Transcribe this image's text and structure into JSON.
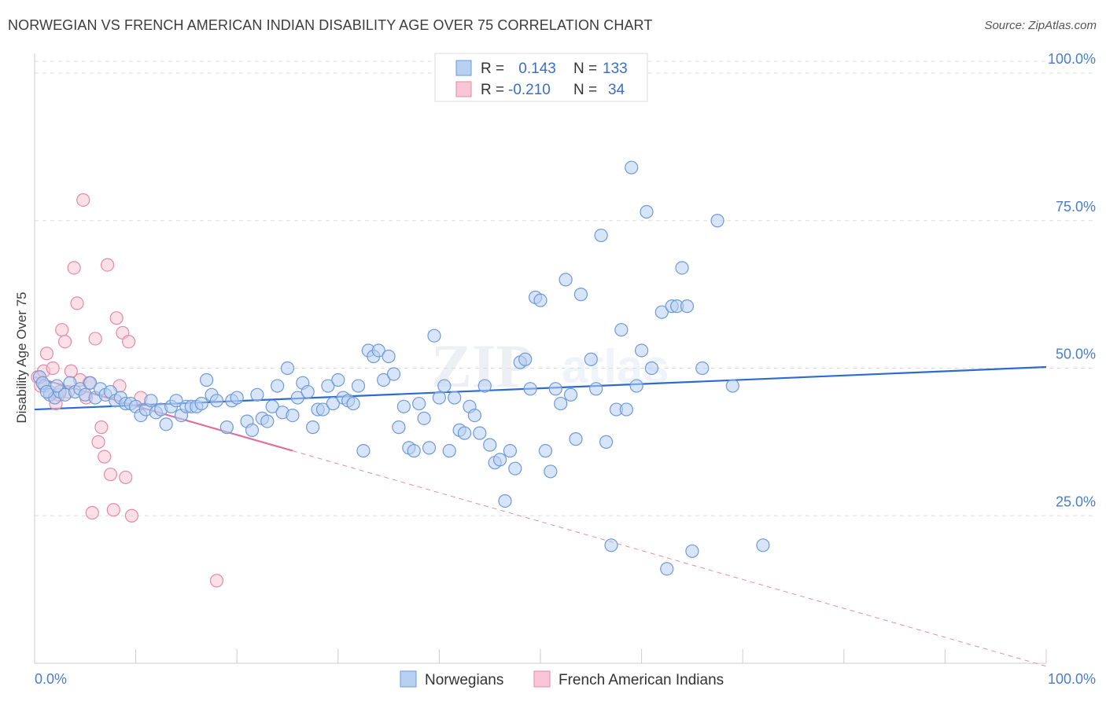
{
  "title": "NORWEGIAN VS FRENCH AMERICAN INDIAN DISABILITY AGE OVER 75 CORRELATION CHART",
  "source": "Source: ZipAtlas.com",
  "colors": {
    "blue_fill": "#b8d0f2",
    "blue_stroke": "#6e9ad8",
    "blue_line": "#2b6cd0",
    "pink_fill": "#f8c6d6",
    "pink_stroke": "#e48aa8",
    "pink_line": "#e0709a",
    "grid": "#dddddd",
    "tick_text": "#4a7ec8"
  },
  "legend": {
    "rows": [
      {
        "r_label": "R =",
        "r_value": " 0.143",
        "n_label": "N =",
        "n_value": "133"
      },
      {
        "r_label": "R =",
        "r_value": "-0.210",
        "n_label": "N =",
        "n_value": "34"
      }
    ]
  },
  "chart_data": {
    "type": "scatter",
    "title": "NORWEGIAN VS FRENCH AMERICAN INDIAN DISABILITY AGE OVER 75 CORRELATION CHART",
    "xlabel": "",
    "ylabel": "Disability Age Over 75",
    "xlim": [
      0,
      100
    ],
    "ylim": [
      0,
      102
    ],
    "x_tick_labels": [
      "0.0%",
      "100.0%"
    ],
    "y_ticks": [
      25,
      50,
      75,
      100
    ],
    "y_tick_labels": [
      "25.0%",
      "50.0%",
      "75.0%",
      "100.0%"
    ],
    "grid": true,
    "watermark": "ZIPatlas",
    "series": [
      {
        "name": "Norwegians",
        "color": "blue",
        "R": 0.143,
        "N": 133,
        "trend": {
          "x0": 0,
          "y0": 43.0,
          "x1": 100,
          "y1": 50.2,
          "dashed_from": null
        },
        "points": [
          [
            0.5,
            48.5
          ],
          [
            1.0,
            47.0
          ],
          [
            1.5,
            45.5
          ],
          [
            2.0,
            45.0
          ],
          [
            2.5,
            46.0
          ],
          [
            3.0,
            45.5
          ],
          [
            3.5,
            47.5
          ],
          [
            4.0,
            46.0
          ],
          [
            4.5,
            46.5
          ],
          [
            5.0,
            45.5
          ],
          [
            5.5,
            47.5
          ],
          [
            6.0,
            45.0
          ],
          [
            6.5,
            46.5
          ],
          [
            7.0,
            45.5
          ],
          [
            7.5,
            46.0
          ],
          [
            8.0,
            44.5
          ],
          [
            8.5,
            45.0
          ],
          [
            9.0,
            44.0
          ],
          [
            9.5,
            44.0
          ],
          [
            10.0,
            43.5
          ],
          [
            10.5,
            42.0
          ],
          [
            11.0,
            43.0
          ],
          [
            11.5,
            44.5
          ],
          [
            12.0,
            42.5
          ],
          [
            12.5,
            43.0
          ],
          [
            13.0,
            40.5
          ],
          [
            13.5,
            43.5
          ],
          [
            14.0,
            44.5
          ],
          [
            14.5,
            42.0
          ],
          [
            15.0,
            43.5
          ],
          [
            15.5,
            43.5
          ],
          [
            16.0,
            43.5
          ],
          [
            16.5,
            44.0
          ],
          [
            17.0,
            48.0
          ],
          [
            17.5,
            45.5
          ],
          [
            18.0,
            44.5
          ],
          [
            19.0,
            40.0
          ],
          [
            19.5,
            44.5
          ],
          [
            20.0,
            45.0
          ],
          [
            21.0,
            41.0
          ],
          [
            21.5,
            39.5
          ],
          [
            22.0,
            45.5
          ],
          [
            22.5,
            41.5
          ],
          [
            23.0,
            41.0
          ],
          [
            23.5,
            43.5
          ],
          [
            24.0,
            47.0
          ],
          [
            24.5,
            42.5
          ],
          [
            25.0,
            50.0
          ],
          [
            25.5,
            42.0
          ],
          [
            26.0,
            45.0
          ],
          [
            26.5,
            47.5
          ],
          [
            27.0,
            46.0
          ],
          [
            27.5,
            40.0
          ],
          [
            28.0,
            43.0
          ],
          [
            28.5,
            43.0
          ],
          [
            29.0,
            47.0
          ],
          [
            29.5,
            44.0
          ],
          [
            30.0,
            48.0
          ],
          [
            30.5,
            45.0
          ],
          [
            31.0,
            44.5
          ],
          [
            31.5,
            44.0
          ],
          [
            32.0,
            47.0
          ],
          [
            32.5,
            36.0
          ],
          [
            33.0,
            53.0
          ],
          [
            33.5,
            52.0
          ],
          [
            34.0,
            53.0
          ],
          [
            34.5,
            48.0
          ],
          [
            35.0,
            52.0
          ],
          [
            35.5,
            49.0
          ],
          [
            36.0,
            40.0
          ],
          [
            36.5,
            43.5
          ],
          [
            37.0,
            36.5
          ],
          [
            37.5,
            36.0
          ],
          [
            38.0,
            44.0
          ],
          [
            38.5,
            41.5
          ],
          [
            39.0,
            36.5
          ],
          [
            39.5,
            55.5
          ],
          [
            40.0,
            45.0
          ],
          [
            40.5,
            47.0
          ],
          [
            41.0,
            36.0
          ],
          [
            41.5,
            45.0
          ],
          [
            42.0,
            39.5
          ],
          [
            42.5,
            39.0
          ],
          [
            43.0,
            43.5
          ],
          [
            43.5,
            42.0
          ],
          [
            44.0,
            39.0
          ],
          [
            44.5,
            47.0
          ],
          [
            45.0,
            37.0
          ],
          [
            45.5,
            34.0
          ],
          [
            46.0,
            34.5
          ],
          [
            46.5,
            27.5
          ],
          [
            47.0,
            36.0
          ],
          [
            47.5,
            33.0
          ],
          [
            48.0,
            51.0
          ],
          [
            48.5,
            51.5
          ],
          [
            49.0,
            46.5
          ],
          [
            49.5,
            62.0
          ],
          [
            50.0,
            61.5
          ],
          [
            50.5,
            36.0
          ],
          [
            51.0,
            32.5
          ],
          [
            51.5,
            46.5
          ],
          [
            52.0,
            44.0
          ],
          [
            52.5,
            65.0
          ],
          [
            53.0,
            45.5
          ],
          [
            53.5,
            38.0
          ],
          [
            54.0,
            62.5
          ],
          [
            55.0,
            51.5
          ],
          [
            55.5,
            46.5
          ],
          [
            56.0,
            72.5
          ],
          [
            56.5,
            37.5
          ],
          [
            57.0,
            20.0
          ],
          [
            57.5,
            43.0
          ],
          [
            58.0,
            56.5
          ],
          [
            58.5,
            43.0
          ],
          [
            59.0,
            84.0
          ],
          [
            59.5,
            47.0
          ],
          [
            60.0,
            53.0
          ],
          [
            60.5,
            76.5
          ],
          [
            61.0,
            50.0
          ],
          [
            62.0,
            59.5
          ],
          [
            62.5,
            16.0
          ],
          [
            63.0,
            60.5
          ],
          [
            63.5,
            60.5
          ],
          [
            64.0,
            67.0
          ],
          [
            64.5,
            60.5
          ],
          [
            65.0,
            19.0
          ],
          [
            66.0,
            50.0
          ],
          [
            67.5,
            75.0
          ],
          [
            69.0,
            47.0
          ],
          [
            72.0,
            20.0
          ],
          [
            0.8,
            47.5
          ],
          [
            1.2,
            46.0
          ],
          [
            2.2,
            47.0
          ]
        ]
      },
      {
        "name": "French American Indians",
        "color": "pink",
        "R": -0.21,
        "N": 34,
        "trend": {
          "x0": 0,
          "y0": 48.5,
          "x1": 100,
          "y1": -0.5,
          "solid_until_x": 25.5
        },
        "points": [
          [
            0.3,
            48.5
          ],
          [
            0.6,
            47.0
          ],
          [
            0.9,
            49.5
          ],
          [
            1.2,
            52.5
          ],
          [
            1.5,
            46.0
          ],
          [
            1.8,
            50.0
          ],
          [
            2.1,
            44.0
          ],
          [
            2.4,
            45.5
          ],
          [
            2.7,
            56.5
          ],
          [
            3.0,
            54.5
          ],
          [
            3.3,
            46.0
          ],
          [
            3.6,
            49.5
          ],
          [
            3.9,
            67.0
          ],
          [
            4.2,
            61.0
          ],
          [
            4.5,
            48.0
          ],
          [
            4.8,
            78.5
          ],
          [
            5.1,
            45.0
          ],
          [
            5.4,
            47.5
          ],
          [
            5.7,
            25.5
          ],
          [
            6.0,
            55.0
          ],
          [
            6.3,
            37.5
          ],
          [
            6.6,
            40.0
          ],
          [
            6.9,
            35.0
          ],
          [
            7.2,
            67.5
          ],
          [
            7.5,
            32.0
          ],
          [
            7.8,
            26.0
          ],
          [
            8.1,
            58.5
          ],
          [
            8.4,
            47.0
          ],
          [
            8.7,
            56.0
          ],
          [
            9.0,
            31.5
          ],
          [
            9.3,
            54.5
          ],
          [
            9.6,
            25.0
          ],
          [
            10.5,
            45.0
          ],
          [
            18.0,
            14.0
          ]
        ]
      }
    ]
  },
  "bottom_legend": {
    "items": [
      "Norwegians",
      "French American Indians"
    ]
  }
}
